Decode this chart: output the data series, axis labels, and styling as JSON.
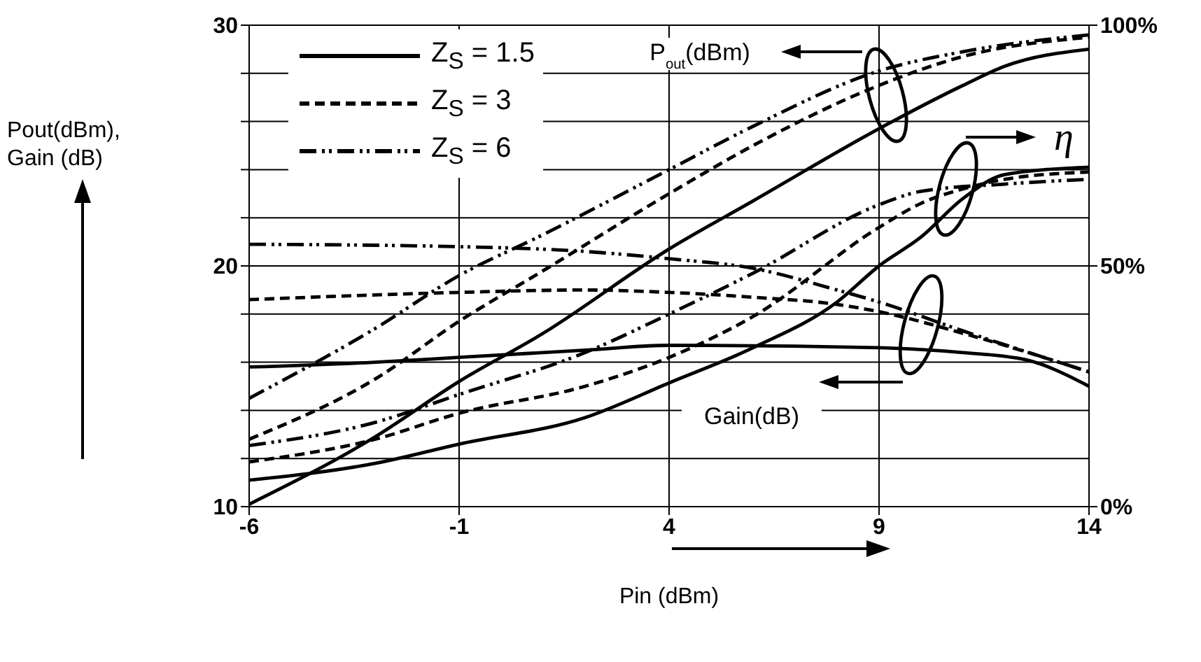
{
  "chart_data": {
    "type": "line",
    "xlabel": "Pin (dBm)",
    "ylabel": "Pout(dBm), Gain (dB)",
    "xlim": [
      -6,
      14
    ],
    "xticks": [
      -6,
      -1,
      4,
      9,
      14
    ],
    "ylim": [
      10,
      30
    ],
    "yticks": [
      10,
      {
        "value": 12,
        "label": null
      },
      {
        "value": 14,
        "label": null
      },
      {
        "value": 16,
        "label": null
      },
      {
        "value": 18,
        "label": null
      },
      20,
      {
        "value": 22,
        "label": null
      },
      {
        "value": 24,
        "label": null
      },
      {
        "value": 26,
        "label": null
      },
      {
        "value": 28,
        "label": null
      },
      30
    ],
    "y2lim": [
      0,
      100
    ],
    "y2ticks": [
      {
        "value": 0,
        "label": "0%"
      },
      {
        "value": 50,
        "label": "50%"
      },
      {
        "value": 100,
        "label": "100%"
      }
    ],
    "grid": true,
    "legend": "top left",
    "marker": "none",
    "annotations": [
      "P$_{out}$(dBm)",
      "η",
      "Gain(dB)"
    ],
    "series": [
      {
        "name": "Z$_{S}$ = 1.5",
        "color": "#000000",
        "line_style": "solid",
        "x": [
          -6,
          -3,
          -1,
          1,
          4,
          6,
          9,
          11,
          12,
          14
        ],
        "values": [
          10.1,
          12.9,
          15.2,
          17.2,
          20.7,
          22.7,
          25.7,
          27.5,
          28.3,
          29.0
        ]
      },
      {
        "name": "Z$_{S}$ = 3",
        "color": "#000000",
        "line_style": "dashed",
        "x": [
          -6,
          -3,
          -1,
          1,
          4,
          6,
          9,
          11,
          14
        ],
        "values": [
          12.8,
          15.3,
          17.7,
          19.8,
          23.0,
          25.0,
          27.5,
          28.7,
          29.5
        ]
      },
      {
        "name": "Z$_{S}$ = 6",
        "color": "#000000",
        "line_style": "dashdot",
        "x": [
          -6,
          -3,
          -1,
          1,
          4,
          6,
          9,
          11,
          14
        ],
        "values": [
          14.5,
          17.4,
          19.6,
          21.3,
          24.0,
          25.8,
          28.1,
          28.9,
          29.6
        ]
      },
      {
        "color": "#000000",
        "line_style": "solid",
        "x": [
          -6,
          -3,
          -1,
          2,
          4,
          9,
          11,
          12.5,
          14
        ],
        "values": [
          15.8,
          16.0,
          16.2,
          16.5,
          16.7,
          16.6,
          16.4,
          16.1,
          15.0
        ]
      },
      {
        "color": "#000000",
        "line_style": "dashed",
        "x": [
          -6,
          -1,
          2,
          4,
          6,
          8,
          9,
          11,
          14
        ],
        "values": [
          18.6,
          18.9,
          19.0,
          18.9,
          18.7,
          18.4,
          18.1,
          17.2,
          15.6
        ]
      },
      {
        "color": "#000000",
        "line_style": "dashdot",
        "x": [
          -6,
          -1,
          2,
          4,
          6,
          8,
          9,
          11,
          14
        ],
        "values": [
          20.9,
          20.8,
          20.6,
          20.3,
          19.9,
          19.0,
          18.5,
          17.3,
          15.6
        ]
      },
      {
        "color": "#000000",
        "line_style": "solid",
        "axis": "y2",
        "x": [
          -6,
          -3,
          -1,
          2,
          4,
          6,
          8,
          9,
          10,
          11,
          12,
          14
        ],
        "values": [
          5.5,
          9,
          13,
          18.5,
          25.7,
          33,
          42.5,
          50,
          56,
          64,
          69,
          70.5
        ]
      },
      {
        "color": "#000000",
        "line_style": "dashed",
        "axis": "y2",
        "x": [
          -6,
          -3,
          -1,
          2,
          4,
          6,
          9,
          10,
          11,
          12,
          14
        ],
        "values": [
          9.3,
          14,
          19.4,
          25,
          31,
          39.5,
          58,
          63,
          66,
          68,
          69.5
        ]
      },
      {
        "color": "#000000",
        "line_style": "dashdot",
        "axis": "y2",
        "x": [
          -6,
          -3,
          -1,
          2,
          4,
          6,
          9,
          10,
          12,
          14
        ],
        "values": [
          12.7,
          17.5,
          23.3,
          32,
          40,
          48.5,
          62.7,
          65.5,
          67,
          68
        ]
      }
    ]
  }
}
